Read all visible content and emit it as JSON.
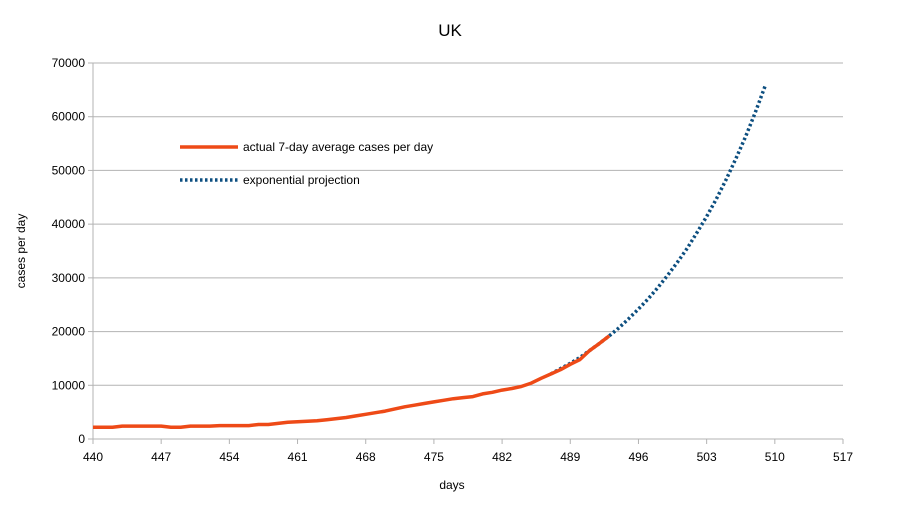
{
  "chart_data": {
    "type": "line",
    "title": "UK",
    "xlabel": "days",
    "ylabel": "cases per day",
    "xlim": [
      440,
      517
    ],
    "ylim": [
      0,
      70000
    ],
    "x_ticks": [
      440,
      447,
      454,
      461,
      468,
      475,
      482,
      489,
      496,
      503,
      510,
      517
    ],
    "y_ticks": [
      0,
      10000,
      20000,
      30000,
      40000,
      50000,
      60000,
      70000
    ],
    "grid": "horizontal",
    "legend_position": "top-left",
    "series": [
      {
        "name": "actual 7-day average cases per day",
        "color": "#ee4a17",
        "style": "solid",
        "x": [
          440,
          441,
          442,
          443,
          444,
          445,
          446,
          447,
          448,
          449,
          450,
          451,
          452,
          453,
          454,
          455,
          456,
          457,
          458,
          459,
          460,
          461,
          462,
          463,
          464,
          465,
          466,
          467,
          468,
          469,
          470,
          471,
          472,
          473,
          474,
          475,
          476,
          477,
          478,
          479,
          480,
          481,
          482,
          483,
          484,
          485,
          486,
          487,
          488,
          489,
          490,
          491,
          492,
          493
        ],
        "values": [
          2200,
          2200,
          2200,
          2400,
          2400,
          2400,
          2400,
          2400,
          2200,
          2200,
          2400,
          2400,
          2400,
          2500,
          2500,
          2500,
          2500,
          2700,
          2700,
          2900,
          3100,
          3200,
          3300,
          3400,
          3600,
          3800,
          4000,
          4300,
          4600,
          4900,
          5200,
          5600,
          6000,
          6300,
          6600,
          6900,
          7200,
          7500,
          7700,
          7900,
          8400,
          8700,
          9100,
          9400,
          9800,
          10400,
          11300,
          12100,
          12900,
          13900,
          14800,
          16500,
          17800,
          19200
        ]
      },
      {
        "name": "exponential projection",
        "color": "#0d4f80",
        "style": "dotted",
        "x": [
          487,
          488,
          489,
          490,
          491,
          492,
          493,
          494,
          495,
          496,
          497,
          498,
          499,
          500,
          501,
          502,
          503,
          504,
          505,
          506,
          507,
          508,
          509
        ],
        "values": [
          12100,
          13100,
          14100,
          15200,
          16500,
          17800,
          19200,
          20700,
          22400,
          24200,
          26100,
          28200,
          30500,
          32900,
          35500,
          38400,
          41400,
          44700,
          48300,
          52200,
          56300,
          60800,
          65700
        ]
      }
    ]
  }
}
